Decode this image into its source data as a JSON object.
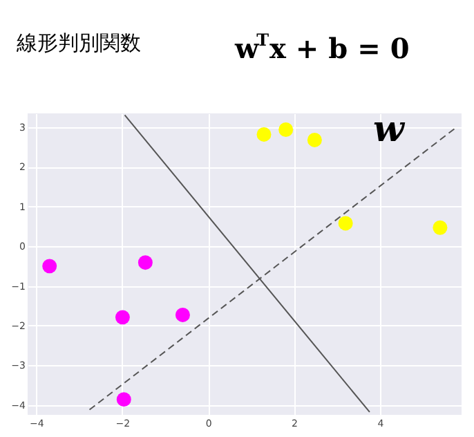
{
  "chart_data": {
    "type": "scatter",
    "title": "線形判別関数",
    "series": [
      {
        "color": "#ff00ff",
        "marker": "circle",
        "x": [
          -3.69,
          -1.46,
          -1.99,
          -0.59,
          -1.96
        ],
        "values": [
          -0.5,
          -0.41,
          -1.79,
          -1.73,
          -3.86
        ]
      },
      {
        "color": "#ffff00",
        "marker": "circle",
        "x": [
          1.3,
          1.81,
          2.48,
          3.2,
          5.4
        ],
        "values": [
          2.82,
          2.94,
          2.68,
          0.58,
          0.47
        ]
      },
      {
        "type": "line",
        "color": "#555555",
        "line_style": "solid",
        "x": [
          -1.94,
          3.76
        ],
        "values": [
          3.31,
          -4.18
        ]
      },
      {
        "type": "line",
        "color": "#555555",
        "line_style": "dashed",
        "x": [
          -2.76,
          5.78
        ],
        "values": [
          -4.12,
          3.0
        ]
      }
    ],
    "annotations": [
      "w$^{T}$x + b = 0",
      "w"
    ],
    "xlim": [
      -4.2,
      5.9
    ],
    "ylim": [
      -4.25,
      3.35
    ],
    "xticks": [
      -4,
      -2,
      0,
      2,
      4
    ],
    "yticks": [
      -4,
      -3,
      -2,
      -1,
      0,
      1,
      2,
      3
    ],
    "grid": true
  }
}
